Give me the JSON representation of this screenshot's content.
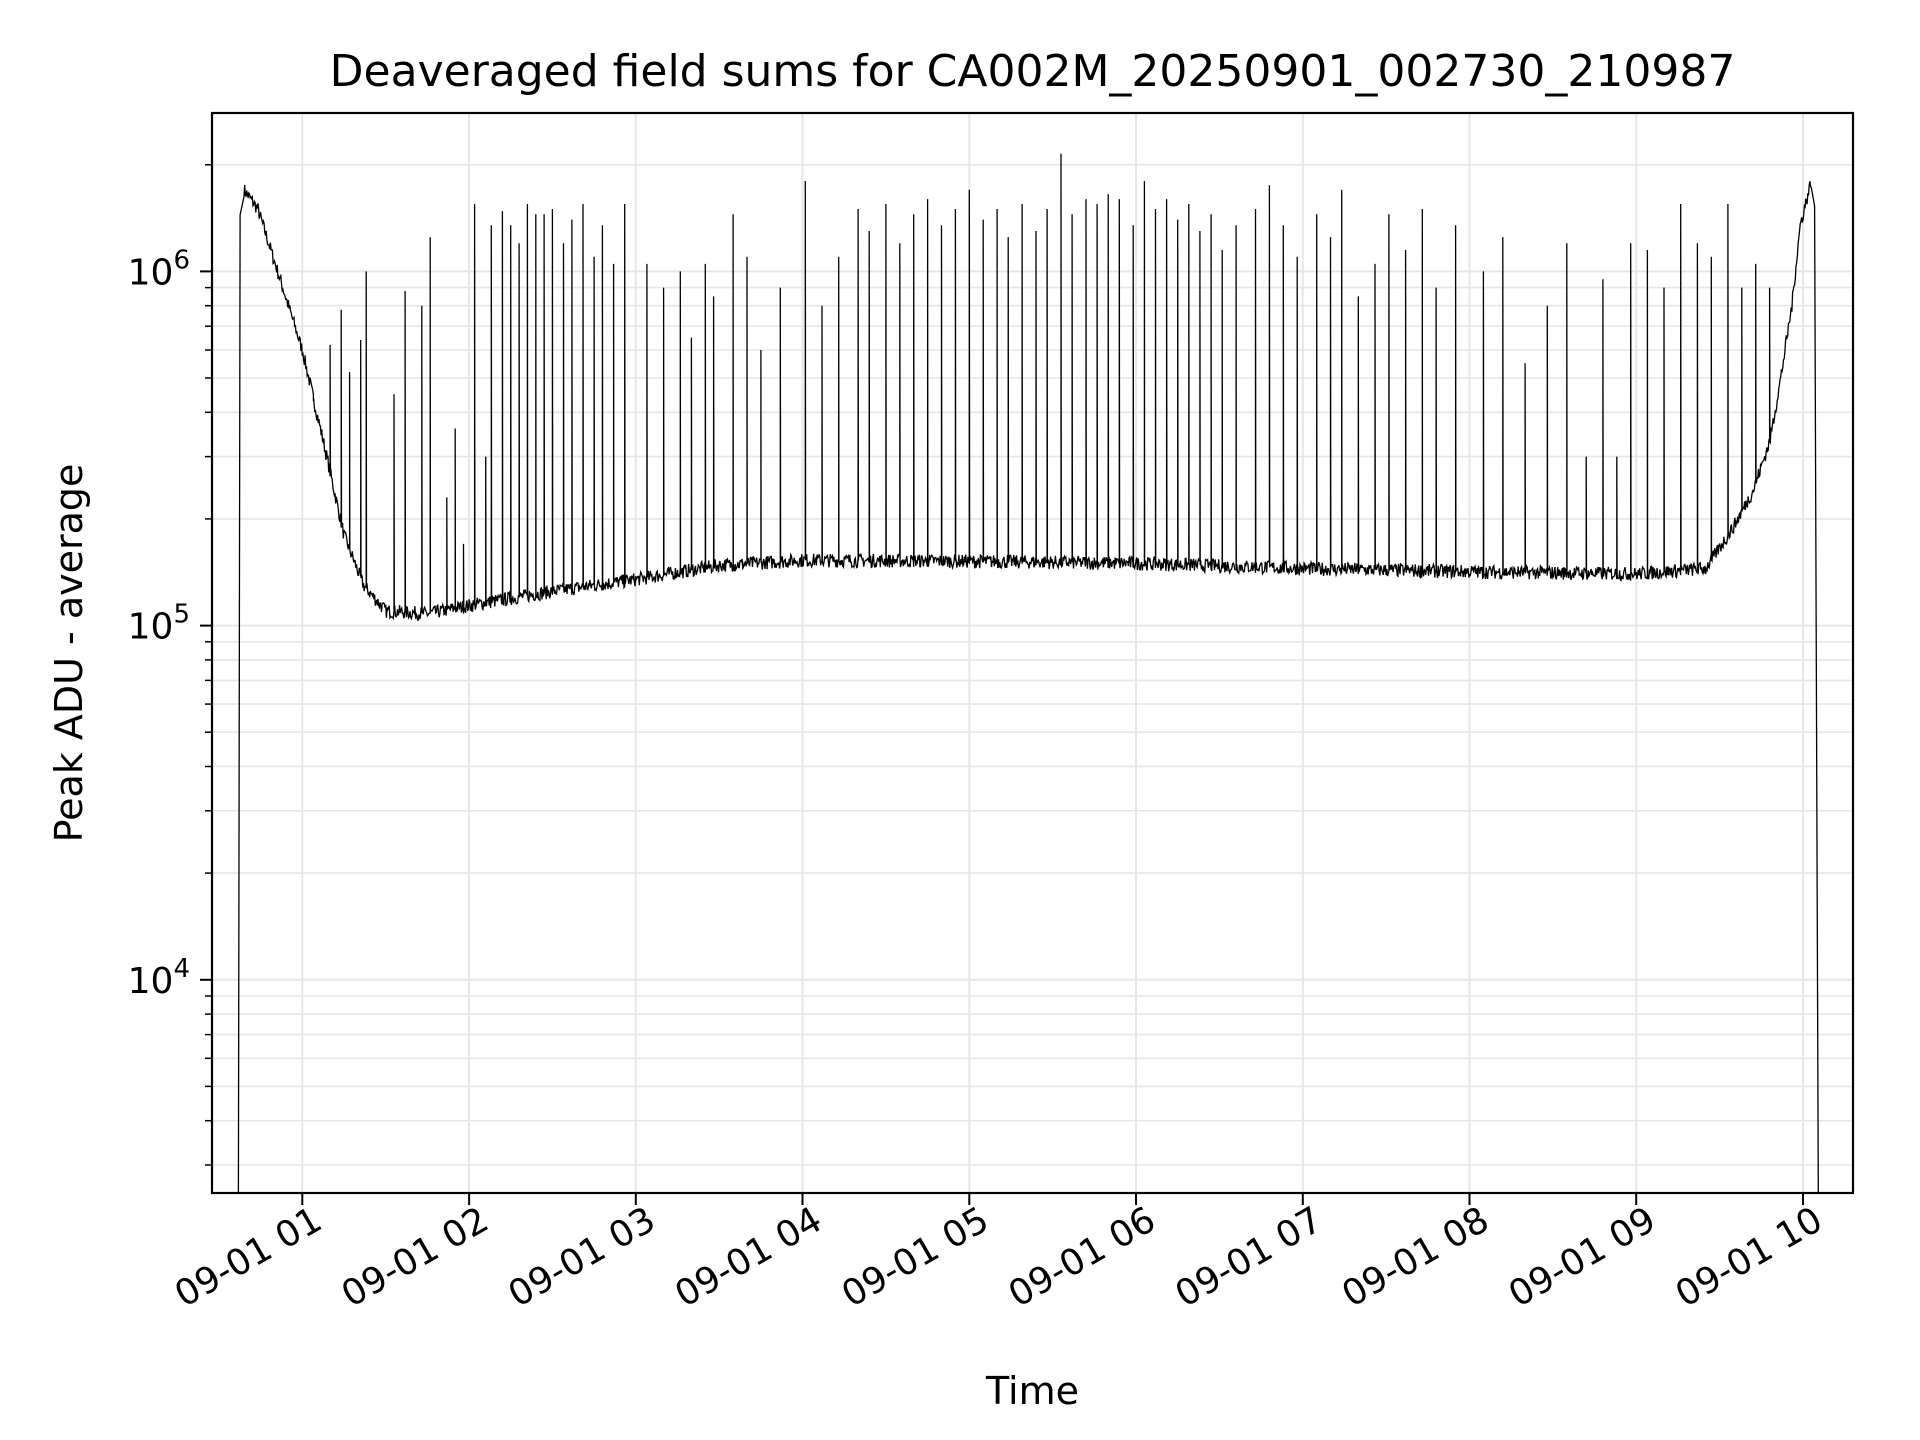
{
  "chart_data": {
    "type": "line",
    "title": "Deaveraged field sums for CA002M_20250901_002730_210987",
    "xlabel": "Time",
    "ylabel": "Peak ADU - average",
    "x_axis": {
      "kind": "datetime",
      "range": [
        "2025-09-01 00:27:30",
        "2025-09-01 10:18:00"
      ],
      "ticks": [
        {
          "value": "2025-09-01 01:00",
          "label": "09-01 01"
        },
        {
          "value": "2025-09-01 02:00",
          "label": "09-01 02"
        },
        {
          "value": "2025-09-01 03:00",
          "label": "09-01 03"
        },
        {
          "value": "2025-09-01 04:00",
          "label": "09-01 04"
        },
        {
          "value": "2025-09-01 05:00",
          "label": "09-01 05"
        },
        {
          "value": "2025-09-01 06:00",
          "label": "09-01 06"
        },
        {
          "value": "2025-09-01 07:00",
          "label": "09-01 07"
        },
        {
          "value": "2025-09-01 08:00",
          "label": "09-01 08"
        },
        {
          "value": "2025-09-01 09:00",
          "label": "09-01 09"
        },
        {
          "value": "2025-09-01 10:00",
          "label": "09-01 10"
        }
      ]
    },
    "y_axis": {
      "scale": "log",
      "range": [
        2500,
        2800000
      ],
      "ticks": [
        {
          "value": 10000,
          "base": "10",
          "exp": "4"
        },
        {
          "value": 100000,
          "base": "10",
          "exp": "5"
        },
        {
          "value": 1000000,
          "base": "10",
          "exp": "6"
        }
      ]
    },
    "grid": true,
    "legend": "none",
    "line_color": "#000000",
    "grid_color": "#e6e6e6",
    "series": [
      {
        "baseline": [
          [
            "2025-09-01 00:39",
            1700000
          ],
          [
            "2025-09-01 00:44",
            1500000
          ],
          [
            "2025-09-01 00:52",
            950000
          ],
          [
            "2025-09-01 01:00",
            600000
          ],
          [
            "2025-09-01 01:08",
            320000
          ],
          [
            "2025-09-01 01:15",
            180000
          ],
          [
            "2025-09-01 01:22",
            130000
          ],
          [
            "2025-09-01 01:30",
            110000
          ],
          [
            "2025-09-01 01:45",
            108000
          ],
          [
            "2025-09-01 02:00",
            114000
          ],
          [
            "2025-09-01 02:30",
            125000
          ],
          [
            "2025-09-01 03:00",
            135000
          ],
          [
            "2025-09-01 03:30",
            148000
          ],
          [
            "2025-09-01 04:00",
            153000
          ],
          [
            "2025-09-01 05:00",
            152000
          ],
          [
            "2025-09-01 06:00",
            150000
          ],
          [
            "2025-09-01 07:00",
            145000
          ],
          [
            "2025-09-01 08:00",
            142000
          ],
          [
            "2025-09-01 09:00",
            140000
          ],
          [
            "2025-09-01 09:25",
            145000
          ],
          [
            "2025-09-01 09:35",
            190000
          ],
          [
            "2025-09-01 09:42",
            240000
          ],
          [
            "2025-09-01 09:48",
            330000
          ],
          [
            "2025-09-01 09:52",
            500000
          ],
          [
            "2025-09-01 09:56",
            800000
          ],
          [
            "2025-09-01 09:59",
            1350000
          ],
          [
            "2025-09-01 10:03",
            1800000
          ]
        ],
        "spikes": [
          [
            "2025-09-01 01:04",
            430000
          ],
          [
            "2025-09-01 01:10",
            620000
          ],
          [
            "2025-09-01 01:14",
            780000
          ],
          [
            "2025-09-01 01:17",
            520000
          ],
          [
            "2025-09-01 01:21",
            640000
          ],
          [
            "2025-09-01 01:23",
            1000000
          ],
          [
            "2025-09-01 01:33",
            450000
          ],
          [
            "2025-09-01 01:37",
            880000
          ],
          [
            "2025-09-01 01:43",
            800000
          ],
          [
            "2025-09-01 01:46",
            1250000
          ],
          [
            "2025-09-01 01:52",
            230000
          ],
          [
            "2025-09-01 01:55",
            360000
          ],
          [
            "2025-09-01 01:58",
            170000
          ],
          [
            "2025-09-01 02:02",
            1550000
          ],
          [
            "2025-09-01 02:06",
            300000
          ],
          [
            "2025-09-01 02:08",
            1350000
          ],
          [
            "2025-09-01 02:12",
            1480000
          ],
          [
            "2025-09-01 02:15",
            1350000
          ],
          [
            "2025-09-01 02:18",
            1200000
          ],
          [
            "2025-09-01 02:21",
            1550000
          ],
          [
            "2025-09-01 02:24",
            1450000
          ],
          [
            "2025-09-01 02:27",
            1450000
          ],
          [
            "2025-09-01 02:30",
            1500000
          ],
          [
            "2025-09-01 02:34",
            1200000
          ],
          [
            "2025-09-01 02:37",
            1400000
          ],
          [
            "2025-09-01 02:41",
            1550000
          ],
          [
            "2025-09-01 02:45",
            1100000
          ],
          [
            "2025-09-01 02:48",
            1350000
          ],
          [
            "2025-09-01 02:52",
            1050000
          ],
          [
            "2025-09-01 02:56",
            1550000
          ],
          [
            "2025-09-01 03:04",
            1050000
          ],
          [
            "2025-09-01 03:10",
            900000
          ],
          [
            "2025-09-01 03:16",
            1000000
          ],
          [
            "2025-09-01 03:20",
            650000
          ],
          [
            "2025-09-01 03:25",
            1050000
          ],
          [
            "2025-09-01 03:28",
            850000
          ],
          [
            "2025-09-01 03:35",
            1450000
          ],
          [
            "2025-09-01 03:40",
            1100000
          ],
          [
            "2025-09-01 03:45",
            600000
          ],
          [
            "2025-09-01 03:52",
            900000
          ],
          [
            "2025-09-01 04:01",
            1800000
          ],
          [
            "2025-09-01 04:07",
            800000
          ],
          [
            "2025-09-01 04:13",
            1100000
          ],
          [
            "2025-09-01 04:20",
            1500000
          ],
          [
            "2025-09-01 04:24",
            1300000
          ],
          [
            "2025-09-01 04:30",
            1550000
          ],
          [
            "2025-09-01 04:35",
            1200000
          ],
          [
            "2025-09-01 04:40",
            1450000
          ],
          [
            "2025-09-01 04:45",
            1600000
          ],
          [
            "2025-09-01 04:50",
            1350000
          ],
          [
            "2025-09-01 04:55",
            1500000
          ],
          [
            "2025-09-01 05:00",
            1700000
          ],
          [
            "2025-09-01 05:05",
            1400000
          ],
          [
            "2025-09-01 05:10",
            1500000
          ],
          [
            "2025-09-01 05:14",
            1250000
          ],
          [
            "2025-09-01 05:19",
            1550000
          ],
          [
            "2025-09-01 05:24",
            1300000
          ],
          [
            "2025-09-01 05:28",
            1500000
          ],
          [
            "2025-09-01 05:33",
            2150000
          ],
          [
            "2025-09-01 05:37",
            1450000
          ],
          [
            "2025-09-01 05:42",
            1600000
          ],
          [
            "2025-09-01 05:46",
            1550000
          ],
          [
            "2025-09-01 05:50",
            1650000
          ],
          [
            "2025-09-01 05:54",
            1600000
          ],
          [
            "2025-09-01 05:59",
            1350000
          ],
          [
            "2025-09-01 06:03",
            1800000
          ],
          [
            "2025-09-01 06:07",
            1500000
          ],
          [
            "2025-09-01 06:11",
            1600000
          ],
          [
            "2025-09-01 06:15",
            1400000
          ],
          [
            "2025-09-01 06:19",
            1550000
          ],
          [
            "2025-09-01 06:23",
            1300000
          ],
          [
            "2025-09-01 06:27",
            1450000
          ],
          [
            "2025-09-01 06:31",
            1150000
          ],
          [
            "2025-09-01 06:36",
            1350000
          ],
          [
            "2025-09-01 06:43",
            1500000
          ],
          [
            "2025-09-01 06:48",
            1750000
          ],
          [
            "2025-09-01 06:53",
            1350000
          ],
          [
            "2025-09-01 06:58",
            1100000
          ],
          [
            "2025-09-01 07:05",
            1450000
          ],
          [
            "2025-09-01 07:10",
            1250000
          ],
          [
            "2025-09-01 07:14",
            1700000
          ],
          [
            "2025-09-01 07:20",
            850000
          ],
          [
            "2025-09-01 07:26",
            1050000
          ],
          [
            "2025-09-01 07:31",
            1450000
          ],
          [
            "2025-09-01 07:37",
            1150000
          ],
          [
            "2025-09-01 07:43",
            1500000
          ],
          [
            "2025-09-01 07:48",
            900000
          ],
          [
            "2025-09-01 07:55",
            1350000
          ],
          [
            "2025-09-01 08:05",
            1000000
          ],
          [
            "2025-09-01 08:12",
            1250000
          ],
          [
            "2025-09-01 08:20",
            550000
          ],
          [
            "2025-09-01 08:28",
            800000
          ],
          [
            "2025-09-01 08:35",
            1200000
          ],
          [
            "2025-09-01 08:42",
            300000
          ],
          [
            "2025-09-01 08:48",
            950000
          ],
          [
            "2025-09-01 08:53",
            300000
          ],
          [
            "2025-09-01 08:58",
            1200000
          ],
          [
            "2025-09-01 09:04",
            1150000
          ],
          [
            "2025-09-01 09:10",
            900000
          ],
          [
            "2025-09-01 09:16",
            1550000
          ],
          [
            "2025-09-01 09:22",
            1200000
          ],
          [
            "2025-09-01 09:27",
            1100000
          ],
          [
            "2025-09-01 09:33",
            1550000
          ],
          [
            "2025-09-01 09:38",
            900000
          ],
          [
            "2025-09-01 09:43",
            1050000
          ],
          [
            "2025-09-01 09:48",
            900000
          ]
        ]
      }
    ]
  }
}
